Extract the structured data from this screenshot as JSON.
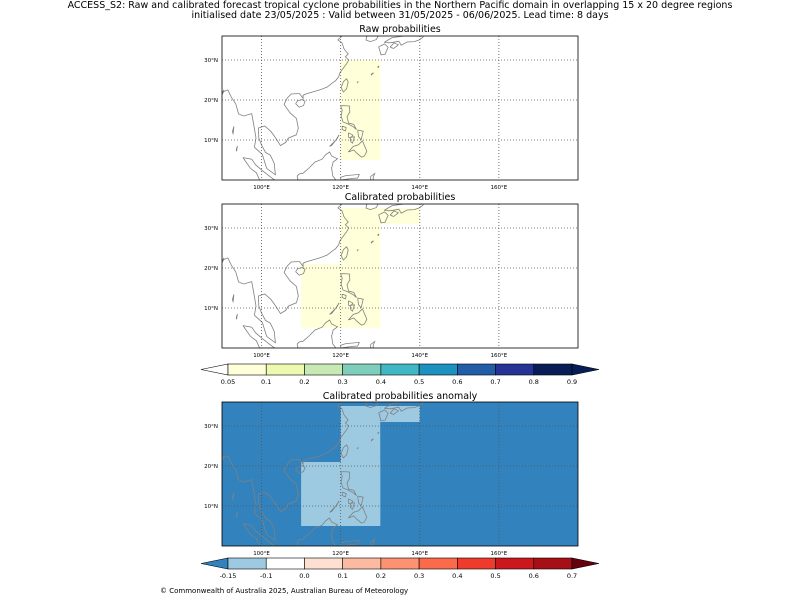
{
  "header": {
    "line1": "ACCESS_S2: Raw and calibrated forecast tropical cyclone probabilities in the Northern Pacific domain in overlapping 15 x 20 degree regions",
    "line2": "initialised date 23/05/2025 :  Valid between 31/05/2025 - 06/06/2025. Lead time: 8 days"
  },
  "panels": [
    {
      "title": "Raw probabilities"
    },
    {
      "title": "Calibrated probabilities"
    },
    {
      "title": "Calibrated probabilities anomaly"
    }
  ],
  "map": {
    "lon_range": [
      90,
      180
    ],
    "lat_range": [
      0,
      36
    ],
    "lon_ticks": [
      {
        "value": 100,
        "label": "100°E"
      },
      {
        "value": 120,
        "label": "120°E"
      },
      {
        "value": 140,
        "label": "140°E"
      },
      {
        "value": 160,
        "label": "160°E"
      }
    ],
    "lat_ticks": [
      {
        "value": 10,
        "label": "10°N"
      },
      {
        "value": 20,
        "label": "20°N"
      },
      {
        "value": 30,
        "label": "30°N"
      }
    ],
    "gridlines": true,
    "coast_color": "#808080",
    "grid_color": "#555555"
  },
  "probability_colorbar": {
    "boundaries": [
      "0.05",
      "0.1",
      "0.2",
      "0.3",
      "0.4",
      "0.5",
      "0.6",
      "0.7",
      "0.8",
      "0.9"
    ],
    "colors": [
      "#ffffd9",
      "#edf8b1",
      "#c7e9b4",
      "#7fcdbb",
      "#41b6c4",
      "#1d91c0",
      "#225ea8",
      "#253494",
      "#081d58"
    ],
    "under_color": "#ffffff",
    "over_color": "#081d58"
  },
  "anomaly_colorbar": {
    "boundaries": [
      "-0.15",
      "-0.1",
      "0.0",
      "0.1",
      "0.2",
      "0.3",
      "0.4",
      "0.5",
      "0.6",
      "0.7"
    ],
    "colors": [
      "#9ecae1",
      "#ffffff",
      "#fee0d2",
      "#fcbba1",
      "#fc9272",
      "#fb6a4a",
      "#ef3b2c",
      "#cb181d",
      "#a50f15"
    ],
    "under_color": "#3182bd",
    "over_color": "#67000d"
  },
  "chart_data": [
    {
      "type": "heatmap",
      "title": "Raw probabilities",
      "background_class": "< 0.05",
      "regions": [
        {
          "lon": [
            120,
            130
          ],
          "lat": [
            5,
            30
          ],
          "class": "0.05-0.1",
          "color": "#ffffd9"
        }
      ]
    },
    {
      "type": "heatmap",
      "title": "Calibrated probabilities",
      "background_class": "< 0.05",
      "regions": [
        {
          "lon": [
            110,
            130
          ],
          "lat": [
            5,
            21
          ],
          "class": "0.05-0.1",
          "color": "#ffffd9"
        },
        {
          "lon": [
            120,
            130
          ],
          "lat": [
            5,
            35
          ],
          "class": "0.05-0.1",
          "color": "#ffffd9"
        },
        {
          "lon": [
            130,
            140
          ],
          "lat": [
            31,
            35
          ],
          "class": "0.05-0.1",
          "color": "#ffffd9"
        }
      ]
    },
    {
      "type": "heatmap",
      "title": "Calibrated probabilities anomaly",
      "background_class": "< -0.15",
      "background_color": "#3182bd",
      "regions": [
        {
          "lon": [
            110,
            130
          ],
          "lat": [
            5,
            21
          ],
          "class": "-0.15 to -0.1",
          "color": "#9ecae1"
        },
        {
          "lon": [
            120,
            130
          ],
          "lat": [
            5,
            35
          ],
          "class": "-0.15 to -0.1",
          "color": "#9ecae1"
        },
        {
          "lon": [
            130,
            140
          ],
          "lat": [
            31,
            35
          ],
          "class": "-0.15 to -0.1",
          "color": "#9ecae1"
        }
      ]
    }
  ],
  "footer": "© Commonwealth of Australia 2025, Australian Bureau of Meteorology"
}
